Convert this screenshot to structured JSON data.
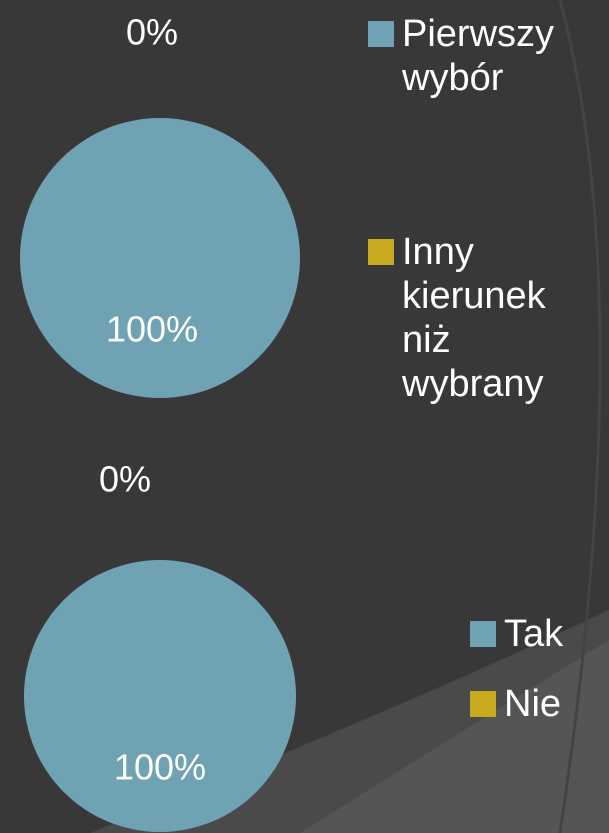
{
  "chart_data": [
    {
      "type": "pie",
      "categories": [
        "Pierwszy wybór",
        "Inny kierunek niż wybrany"
      ],
      "values": [
        100,
        0
      ],
      "value_labels": [
        "100%",
        "0%"
      ],
      "colors": [
        "#6fa3b4",
        "#c9ab1f"
      ]
    },
    {
      "type": "pie",
      "categories": [
        "Tak",
        "Nie"
      ],
      "values": [
        100,
        0
      ],
      "value_labels": [
        "100%",
        "0%"
      ],
      "colors": [
        "#6fa3b4",
        "#c9ab1f"
      ]
    }
  ]
}
